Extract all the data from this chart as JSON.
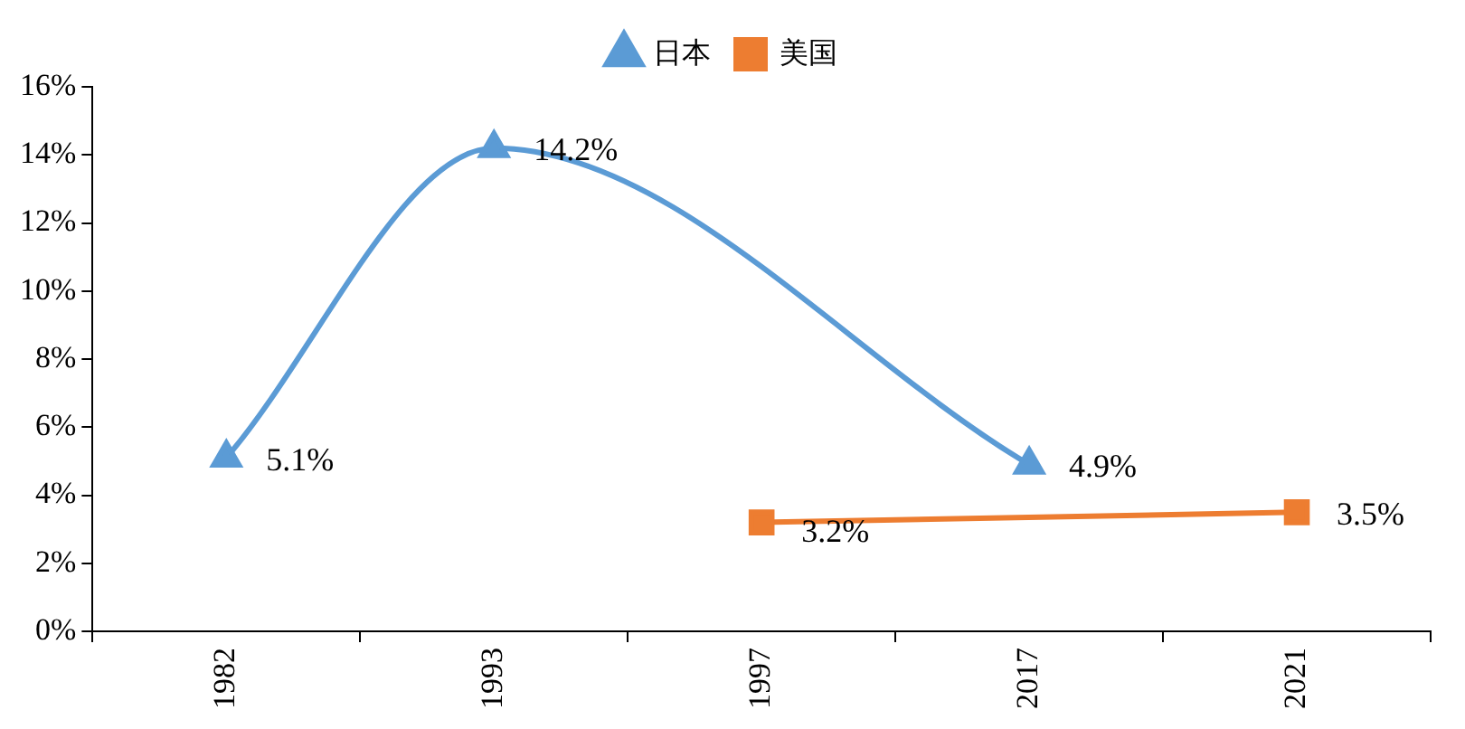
{
  "chart_data": {
    "type": "line",
    "categories": [
      "1982",
      "1993",
      "1997",
      "2017",
      "2021"
    ],
    "series": [
      {
        "name": "日本",
        "color": "#5b9bd5",
        "marker": "triangle",
        "values": [
          5.1,
          14.2,
          null,
          4.9,
          null
        ],
        "value_labels": [
          "5.1%",
          "14.2%",
          null,
          "4.9%",
          null
        ]
      },
      {
        "name": "美国",
        "color": "#ed7d31",
        "marker": "square",
        "values": [
          null,
          null,
          3.2,
          null,
          3.5
        ],
        "value_labels": [
          null,
          null,
          "3.2%",
          null,
          "3.5%"
        ]
      }
    ],
    "ylim": [
      0,
      16
    ],
    "yticks": [
      {
        "value": 0,
        "label": "0%"
      },
      {
        "value": 2,
        "label": "2%"
      },
      {
        "value": 4,
        "label": "4%"
      },
      {
        "value": 6,
        "label": "6%"
      },
      {
        "value": 8,
        "label": "8%"
      },
      {
        "value": 10,
        "label": "10%"
      },
      {
        "value": 12,
        "label": "12%"
      },
      {
        "value": 14,
        "label": "14%"
      },
      {
        "value": 16,
        "label": "16%"
      }
    ],
    "grid": false,
    "legend": "top"
  }
}
